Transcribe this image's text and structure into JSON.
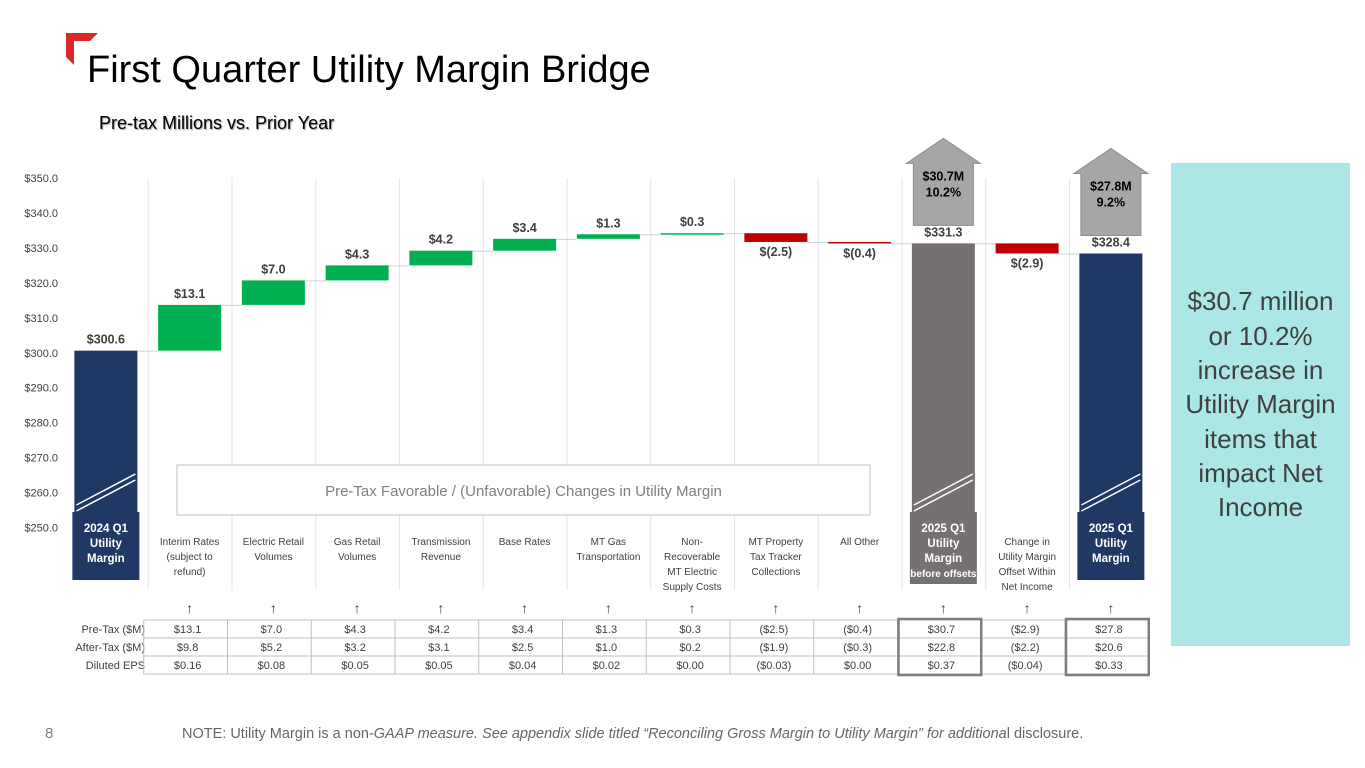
{
  "page": {
    "title": "First Quarter Utility Margin Bridge",
    "subtitle": "Pre-tax Millions vs. Prior Year",
    "page_number": "8",
    "footnote": {
      "part1": "NOTE: Utility Margin is a non-",
      "part2": "GAAP measure. See appendix slide titled “Reconciling Gross Margin to Utility Margin” for additiona",
      "part3": "l disclosure."
    },
    "callout": "$30.7 million or 10.2% increase in Utility Margin items that impact Net Income",
    "colors": {
      "accent_red": "#d9282a",
      "navy": "#1f3864",
      "green": "#00b050",
      "dark_red": "#c00000",
      "gray": "#767171",
      "arrow_gray": "#a6a6a6",
      "callout_bg": "#ace6e6"
    }
  },
  "chart_data": {
    "type": "bar",
    "subtype": "waterfall",
    "title": "",
    "ylim": [
      250,
      350
    ],
    "ytick_step": 10,
    "ytick_labels": [
      "$250.0",
      "$260.0",
      "$270.0",
      "$280.0",
      "$290.0",
      "$300.0",
      "$310.0",
      "$320.0",
      "$330.0",
      "$340.0",
      "$350.0"
    ],
    "grid": "vertical",
    "annotation_box": "Pre-Tax Favorable / (Unfavorable) Changes in Utility Margin",
    "categories": [
      "2024 Q1 Utility Margin",
      "Interim Rates (subject to refund)",
      "Electric Retail Volumes",
      "Gas Retail Volumes",
      "Transmission Revenue",
      "Base Rates",
      "MT Gas Transportation",
      "Non-Recoverable MT Electric Supply Costs",
      "MT Property Tax Tracker Collections",
      "All Other",
      "2025 Q1 Utility Margin (before offsets)",
      "Change in Utility Margin Offset Within Net Income",
      "2025 Q1 Utility Margin"
    ],
    "category_lines": [
      [
        "2024 Q1",
        "Utility",
        "Margin"
      ],
      [
        "Interim Rates",
        "(subject to",
        "refund)"
      ],
      [
        "Electric Retail",
        "Volumes"
      ],
      [
        "Gas Retail",
        "Volumes"
      ],
      [
        "Transmission",
        "Revenue"
      ],
      [
        "Base Rates"
      ],
      [
        "MT Gas",
        "Transportation"
      ],
      [
        "Non-",
        "Recoverable",
        "MT Electric",
        "Supply Costs"
      ],
      [
        "MT Property",
        "Tax Tracker",
        "Collections"
      ],
      [
        "All Other"
      ],
      [
        "2025 Q1",
        "Utility",
        "Margin",
        "(before offsets)"
      ],
      [
        "Change in",
        "Utility Margin",
        "Offset Within",
        "Net Income"
      ],
      [
        "2025 Q1",
        "Utility",
        "Margin"
      ]
    ],
    "bars": [
      {
        "kind": "total",
        "start": 250,
        "end": 300.6,
        "label": "$300.6",
        "color": "#1f3864",
        "label_box": true
      },
      {
        "kind": "delta",
        "start": 300.6,
        "end": 313.7,
        "label": "$13.1",
        "color": "#00b050"
      },
      {
        "kind": "delta",
        "start": 313.7,
        "end": 320.7,
        "label": "$7.0",
        "color": "#00b050"
      },
      {
        "kind": "delta",
        "start": 320.7,
        "end": 325.0,
        "label": "$4.3",
        "color": "#00b050"
      },
      {
        "kind": "delta",
        "start": 325.0,
        "end": 329.2,
        "label": "$4.2",
        "color": "#00b050"
      },
      {
        "kind": "delta",
        "start": 329.2,
        "end": 332.6,
        "label": "$3.4",
        "color": "#00b050"
      },
      {
        "kind": "delta",
        "start": 332.6,
        "end": 333.9,
        "label": "$1.3",
        "color": "#00b050"
      },
      {
        "kind": "delta",
        "start": 333.9,
        "end": 334.2,
        "label": "$0.3",
        "color": "#00b050"
      },
      {
        "kind": "delta",
        "start": 334.2,
        "end": 331.7,
        "label": "$(2.5)",
        "color": "#c00000"
      },
      {
        "kind": "delta",
        "start": 331.7,
        "end": 331.3,
        "label": "$(0.4)",
        "color": "#c00000"
      },
      {
        "kind": "total",
        "start": 250,
        "end": 331.3,
        "label": "$331.3",
        "color": "#767171",
        "label_box": true
      },
      {
        "kind": "delta",
        "start": 331.3,
        "end": 328.4,
        "label": "$(2.9)",
        "color": "#c00000"
      },
      {
        "kind": "total",
        "start": 250,
        "end": 328.4,
        "label": "$328.4",
        "color": "#1f3864",
        "label_box": true
      }
    ],
    "increase_arrows": [
      {
        "bar_index": 10,
        "amount": "$30.7M",
        "percent": "10.2%"
      },
      {
        "bar_index": 12,
        "amount": "$27.8M",
        "percent": "9.2%"
      }
    ],
    "table": {
      "row_headers": [
        "Pre-Tax ($M)",
        "After-Tax ($M)",
        "Diluted EPS"
      ],
      "rows": [
        [
          "$13.1",
          "$7.0",
          "$4.3",
          "$4.2",
          "$3.4",
          "$1.3",
          "$0.3",
          "($2.5)",
          "($0.4)",
          "$30.7",
          "($2.9)",
          "$27.8"
        ],
        [
          "$9.8",
          "$5.2",
          "$3.2",
          "$3.1",
          "$2.5",
          "$1.0",
          "$0.2",
          "($1.9)",
          "($0.3)",
          "$22.8",
          "($2.2)",
          "$20.6"
        ],
        [
          "$0.16",
          "$0.08",
          "$0.05",
          "$0.05",
          "$0.04",
          "$0.02",
          "$0.00",
          "($0.03)",
          "$0.00",
          "$0.37",
          "($0.04)",
          "$0.33"
        ]
      ],
      "highlighted_columns": [
        9,
        11
      ]
    }
  }
}
